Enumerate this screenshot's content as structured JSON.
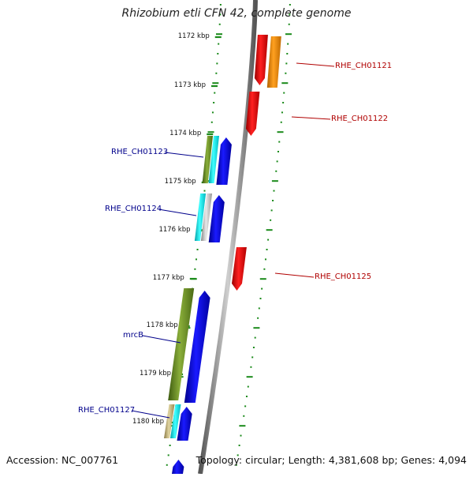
{
  "title": "Rhizobium etli CFN 42, complete genome",
  "footer": {
    "accession": "Accession: NC_007761",
    "summary": "Topology: circular; Length: 4,381,608 bp; Genes: 4,094"
  },
  "kbp_ticks": [
    "1172 kbp",
    "1173 kbp",
    "1174 kbp",
    "1175 kbp",
    "1176 kbp",
    "1177 kbp",
    "1178 kbp",
    "1179 kbp",
    "1180 kbp"
  ],
  "gene_labels": {
    "rhe_ch01121": "RHE_CH01121",
    "rhe_ch01122": "RHE_CH01122",
    "rhe_ch01123": "RHE_CH01123",
    "rhe_ch01124": "RHE_CH01124",
    "rhe_ch01125": "RHE_CH01125",
    "mrcb": "mrcB",
    "rhe_ch01127": "RHE_CH01127"
  },
  "colors": {
    "reverse_strand": "#ff0000",
    "reverse_strand_alt": "#ff8c00",
    "forward_strand": "#0000ff",
    "cyan": "#00e5ee",
    "olive": "#6b8e23",
    "tan": "#c8b880",
    "backbone": "#8c8c8c",
    "tick": "#1a8a1a",
    "label_reverse": "#b00000",
    "label_forward": "#00008b"
  }
}
